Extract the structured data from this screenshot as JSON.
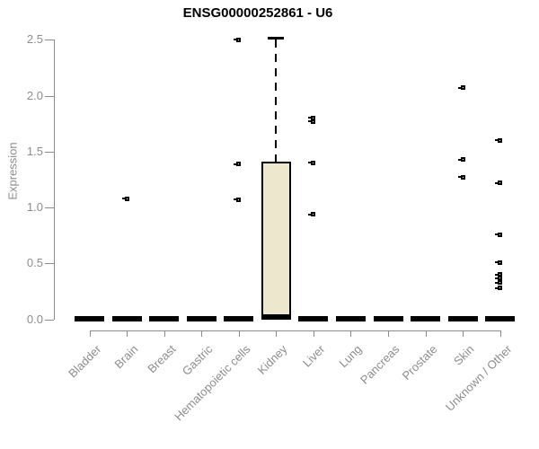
{
  "title": "ENSG00000252861 - U6",
  "chart_data": {
    "type": "boxplot",
    "title": "ENSG00000252861 - U6",
    "xlabel": "",
    "ylabel": "Expression",
    "ylim": [
      0,
      2.5
    ],
    "ytick_labels": [
      "0.0",
      "0.5",
      "1.0",
      "1.5",
      "2.0",
      "2.5"
    ],
    "ytick_values": [
      0,
      0.5,
      1.0,
      1.5,
      2.0,
      2.5
    ],
    "grid": false,
    "legend": "none",
    "categories": [
      "Bladder",
      "Brain",
      "Breast",
      "Gastric",
      "Hematopoietic cells",
      "Kidney",
      "Liver",
      "Lung",
      "Pancreas",
      "Prostate",
      "Skin",
      "Unknown / Other"
    ],
    "boxes": [
      {
        "category": "Bladder",
        "q1": 0,
        "median": 0,
        "q3": 0,
        "whisker_low": 0,
        "whisker_high": 0,
        "outliers": []
      },
      {
        "category": "Brain",
        "q1": 0,
        "median": 0,
        "q3": 0,
        "whisker_low": 0,
        "whisker_high": 0,
        "outliers": [
          1.08
        ]
      },
      {
        "category": "Breast",
        "q1": 0,
        "median": 0,
        "q3": 0,
        "whisker_low": 0,
        "whisker_high": 0,
        "outliers": []
      },
      {
        "category": "Gastric",
        "q1": 0,
        "median": 0,
        "q3": 0,
        "whisker_low": 0,
        "whisker_high": 0,
        "outliers": []
      },
      {
        "category": "Hematopoietic cells",
        "q1": 0,
        "median": 0,
        "q3": 0,
        "whisker_low": 0,
        "whisker_high": 0,
        "outliers": [
          2.5,
          1.39,
          1.07
        ]
      },
      {
        "category": "Kidney",
        "q1": 0.02,
        "median": 0.02,
        "q3": 1.41,
        "whisker_low": 0,
        "whisker_high": 2.52,
        "outliers": []
      },
      {
        "category": "Liver",
        "q1": 0,
        "median": 0,
        "q3": 0,
        "whisker_low": 0,
        "whisker_high": 0,
        "outliers": [
          1.8,
          1.77,
          1.4,
          0.94
        ]
      },
      {
        "category": "Lung",
        "q1": 0,
        "median": 0,
        "q3": 0,
        "whisker_low": 0,
        "whisker_high": 0,
        "outliers": []
      },
      {
        "category": "Pancreas",
        "q1": 0,
        "median": 0,
        "q3": 0,
        "whisker_low": 0,
        "whisker_high": 0,
        "outliers": []
      },
      {
        "category": "Prostate",
        "q1": 0,
        "median": 0,
        "q3": 0,
        "whisker_low": 0,
        "whisker_high": 0,
        "outliers": []
      },
      {
        "category": "Skin",
        "q1": 0,
        "median": 0,
        "q3": 0,
        "whisker_low": 0,
        "whisker_high": 0,
        "outliers": [
          2.07,
          1.43,
          1.27
        ]
      },
      {
        "category": "Unknown / Other",
        "q1": 0,
        "median": 0,
        "q3": 0,
        "whisker_low": 0,
        "whisker_high": 0,
        "outliers": [
          1.6,
          1.22,
          0.76,
          0.51,
          0.4,
          0.37,
          0.33,
          0.28
        ]
      }
    ],
    "colors": {
      "box_fill": "#EDE7CE",
      "box_border": "#000000",
      "collapsed_box": "#000000",
      "axis": "#8C8C8C",
      "tick_text": "#8C8C8C",
      "title_text": "#000000",
      "background": "#FFFFFF"
    }
  }
}
